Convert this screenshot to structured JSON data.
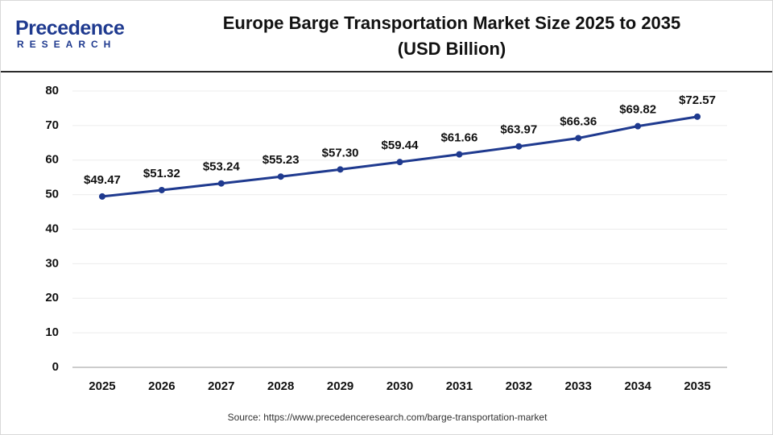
{
  "logo": {
    "name": "Precedence",
    "tagline": "RESEARCH"
  },
  "chart_data": {
    "type": "line",
    "title": "Europe Barge Transportation Market Size 2025 to 2035 (USD Billion)",
    "categories": [
      "2025",
      "2026",
      "2027",
      "2028",
      "2029",
      "2030",
      "2031",
      "2032",
      "2033",
      "2034",
      "2035"
    ],
    "series": [
      {
        "color": "#1f3a8f",
        "values": [
          49.47,
          51.32,
          53.24,
          55.23,
          57.3,
          59.44,
          61.66,
          63.97,
          66.36,
          69.82,
          72.57
        ],
        "value_labels": [
          "$49.47",
          "$51.32",
          "$53.24",
          "$55.23",
          "$57.30",
          "$59.44",
          "$61.66",
          "$63.97",
          "$66.36",
          "$69.82",
          "$72.57"
        ]
      }
    ],
    "ylim": [
      0,
      80
    ],
    "yticks": [
      0,
      10,
      20,
      30,
      40,
      50,
      60,
      70,
      80
    ],
    "grid": true,
    "source": "Source: https://www.precedenceresearch.com/barge-transportation-market"
  }
}
